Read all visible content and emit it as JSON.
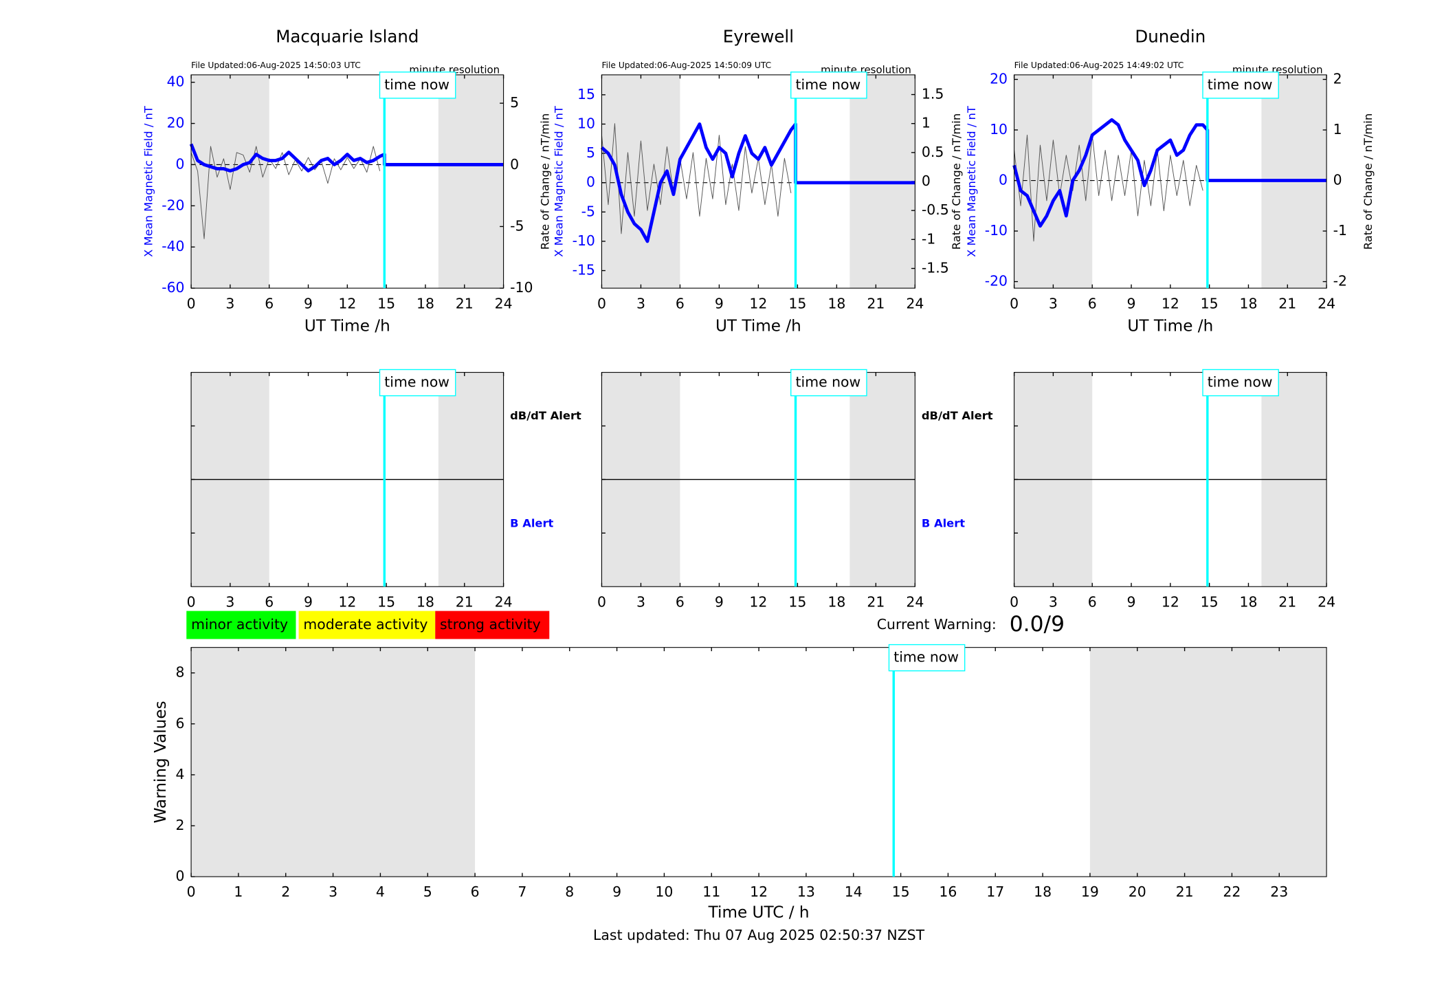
{
  "chart_data": [
    {
      "type": "line",
      "title": "Macquarie Island",
      "note": "File Updated:06-Aug-2025 14:50:03 UTC",
      "resolution": "minute resolution",
      "now_label": "time now",
      "now": 14.85,
      "night": [
        [
          0,
          6
        ],
        [
          19,
          24
        ]
      ],
      "xlabel": "UT Time /h",
      "ylabel": "X Mean Magnetic Field / nT",
      "y2label": "Rate of Change / nT/min",
      "xlim": [
        0,
        24
      ],
      "xticks": [
        0,
        3,
        6,
        9,
        12,
        15,
        18,
        21,
        24
      ],
      "ylim": [
        -60,
        43.6
      ],
      "yticks": [
        -60,
        -40,
        -20,
        0,
        20,
        40
      ],
      "y2lim": [
        -10,
        7.3
      ],
      "y2ticks": [
        -10,
        -5,
        0,
        5
      ],
      "series": [
        {
          "color": "#555555",
          "axis": "y2",
          "x": [
            0,
            0.5,
            1,
            1.5,
            2,
            2.5,
            3,
            3.5,
            4,
            4.5,
            5,
            5.5,
            6,
            6.5,
            7,
            7.5,
            8,
            8.5,
            9,
            9.5,
            10,
            10.5,
            11,
            11.5,
            12,
            12.5,
            13,
            13.5,
            14,
            14.5
          ],
          "values": [
            1,
            -0.5,
            -6,
            1.5,
            -1,
            0.5,
            -2,
            1,
            0.8,
            -0.6,
            1.5,
            -1,
            0.5,
            -0.3,
            1,
            -0.8,
            0.4,
            -0.5,
            0.6,
            -0.4,
            0.3,
            -1.5,
            0.5,
            -0.4,
            0.6,
            -0.3,
            0.5,
            -0.6,
            1.5,
            -0.5
          ]
        },
        {
          "color": "#0000ff",
          "x": [
            0,
            0.5,
            1,
            1.5,
            2,
            2.5,
            3,
            3.5,
            4,
            4.5,
            5,
            5.5,
            6,
            6.5,
            7,
            7.5,
            8,
            8.5,
            9,
            9.5,
            10,
            10.5,
            11,
            11.5,
            12,
            12.5,
            13,
            13.5,
            14,
            14.5,
            14.85,
            14.85,
            24
          ],
          "values": [
            10,
            2,
            0,
            -1,
            -2,
            -2,
            -3,
            -2,
            0,
            1,
            5,
            3,
            2,
            2,
            3,
            6,
            3,
            0,
            -3,
            -1,
            2,
            3,
            0,
            2,
            5,
            2,
            3,
            1,
            2,
            4,
            5,
            0,
            0
          ]
        }
      ]
    },
    {
      "type": "line",
      "title": "Eyrewell",
      "note": "File Updated:06-Aug-2025 14:50:09 UTC",
      "resolution": "minute resolution",
      "now_label": "time now",
      "now": 14.85,
      "night": [
        [
          0,
          6
        ],
        [
          19,
          24
        ]
      ],
      "xlabel": "UT Time /h",
      "ylabel": "X Mean Magnetic Field / nT",
      "y2label": "Rate of Change / nT/min",
      "xlim": [
        0,
        24
      ],
      "xticks": [
        0,
        3,
        6,
        9,
        12,
        15,
        18,
        21,
        24
      ],
      "ylim": [
        -18,
        18.4
      ],
      "yticks": [
        -15,
        -10,
        -5,
        0,
        5,
        10,
        15
      ],
      "y2lim": [
        -1.84,
        1.84
      ],
      "y2ticks": [
        -1.5,
        -1,
        -0.5,
        0,
        0.5,
        1,
        1.5
      ],
      "series": [
        {
          "color": "#555555",
          "axis": "y2",
          "x": [
            0,
            0.5,
            1,
            1.5,
            2,
            2.5,
            3,
            3.5,
            4,
            4.5,
            5,
            5.5,
            6,
            6.5,
            7,
            7.5,
            8,
            8.5,
            9,
            9.5,
            10,
            10.5,
            11,
            11.5,
            12,
            12.5,
            13,
            13.5,
            14,
            14.5
          ],
          "values": [
            0.8,
            -0.4,
            1,
            -0.9,
            0.5,
            -0.6,
            0.7,
            -0.5,
            0.3,
            -0.4,
            0.6,
            -0.2,
            0.4,
            -0.3,
            0.5,
            -0.6,
            0.4,
            -0.3,
            0.8,
            -0.4,
            0.3,
            -0.5,
            0.6,
            -0.2,
            0.4,
            -0.4,
            0.3,
            -0.6,
            0.4,
            -0.2
          ]
        },
        {
          "color": "#0000ff",
          "x": [
            0,
            0.5,
            1,
            1.5,
            2,
            2.5,
            3,
            3.5,
            4,
            4.5,
            5,
            5.5,
            6,
            6.5,
            7,
            7.5,
            8,
            8.5,
            9,
            9.5,
            10,
            10.5,
            11,
            11.5,
            12,
            12.5,
            13,
            13.5,
            14,
            14.5,
            14.85,
            14.85,
            24
          ],
          "values": [
            6,
            5,
            3,
            -2,
            -5,
            -7,
            -8,
            -10,
            -5,
            0,
            2,
            -2,
            4,
            6,
            8,
            10,
            6,
            4,
            6,
            5,
            1,
            5,
            8,
            5,
            4,
            6,
            3,
            5,
            7,
            9,
            10,
            0,
            0
          ]
        }
      ]
    },
    {
      "type": "line",
      "title": "Dunedin",
      "note": "File Updated:06-Aug-2025 14:49:02 UTC",
      "resolution": "minute resolution",
      "now_label": "time now",
      "now": 14.85,
      "night": [
        [
          0,
          6
        ],
        [
          19,
          24
        ]
      ],
      "xlabel": "UT Time /h",
      "ylabel": "X Mean Magnetic Field / nT",
      "y2label": "Rate of Change / nT/min",
      "xlim": [
        0,
        24
      ],
      "xticks": [
        0,
        3,
        6,
        9,
        12,
        15,
        18,
        21,
        24
      ],
      "ylim": [
        -21.3,
        20.9
      ],
      "yticks": [
        -20,
        -10,
        0,
        10,
        20
      ],
      "y2lim": [
        -2.13,
        2.09
      ],
      "y2ticks": [
        -2,
        -1,
        0,
        1,
        2
      ],
      "series": [
        {
          "color": "#555555",
          "axis": "y2",
          "x": [
            0,
            0.5,
            1,
            1.5,
            2,
            2.5,
            3,
            3.5,
            4,
            4.5,
            5,
            5.5,
            6,
            6.5,
            7,
            7.5,
            8,
            8.5,
            9,
            9.5,
            10,
            10.5,
            11,
            11.5,
            12,
            12.5,
            13,
            13.5,
            14,
            14.5
          ],
          "values": [
            0.6,
            -0.5,
            0.9,
            -1.2,
            0.7,
            -0.4,
            0.8,
            -0.3,
            0.5,
            -0.2,
            0.7,
            -0.4,
            0.9,
            -0.3,
            0.6,
            -0.4,
            0.5,
            -0.3,
            0.6,
            -0.7,
            0.4,
            -0.5,
            0.6,
            -0.6,
            0.5,
            -0.3,
            0.4,
            -0.5,
            0.3,
            -0.2
          ]
        },
        {
          "color": "#0000ff",
          "x": [
            0,
            0.5,
            1,
            1.5,
            2,
            2.5,
            3,
            3.5,
            4,
            4.5,
            5,
            5.5,
            6,
            6.5,
            7,
            7.5,
            8,
            8.5,
            9,
            9.5,
            10,
            10.5,
            11,
            11.5,
            12,
            12.5,
            13,
            13.5,
            14,
            14.5,
            14.85,
            14.85,
            24
          ],
          "values": [
            3,
            -2,
            -3,
            -6,
            -9,
            -7,
            -4,
            -2,
            -7,
            0,
            2,
            5,
            9,
            10,
            11,
            12,
            11,
            8,
            6,
            4,
            -1,
            2,
            6,
            7,
            8,
            5,
            6,
            9,
            11,
            11,
            10,
            0,
            0
          ]
        }
      ]
    },
    {
      "type": "alert",
      "now_label": "time now",
      "now": 14.85,
      "night": [
        [
          0,
          6
        ],
        [
          19,
          24
        ]
      ],
      "xlim": [
        0,
        24
      ],
      "xticks": [
        0,
        3,
        6,
        9,
        12,
        15,
        18,
        21,
        24
      ],
      "upper_label": "dB/dT Alert",
      "lower_label": "B Alert"
    },
    {
      "type": "alert",
      "now_label": "time now",
      "now": 14.85,
      "night": [
        [
          0,
          6
        ],
        [
          19,
          24
        ]
      ],
      "xlim": [
        0,
        24
      ],
      "xticks": [
        0,
        3,
        6,
        9,
        12,
        15,
        18,
        21,
        24
      ],
      "upper_label": "dB/dT Alert",
      "lower_label": "B Alert"
    },
    {
      "type": "alert",
      "now_label": "time now",
      "now": 14.85,
      "night": [
        [
          0,
          6
        ],
        [
          19,
          24
        ]
      ],
      "xlim": [
        0,
        24
      ],
      "xticks": [
        0,
        3,
        6,
        9,
        12,
        15,
        18,
        21,
        24
      ]
    },
    {
      "type": "bar",
      "now_label": "time now",
      "now": 14.85,
      "night": [
        [
          0,
          6
        ],
        [
          19,
          24
        ]
      ],
      "xlabel": "Time UTC / h",
      "ylabel": "Warning Values",
      "xlim": [
        0,
        24
      ],
      "xticks": [
        0,
        1,
        2,
        3,
        4,
        5,
        6,
        7,
        8,
        9,
        10,
        11,
        12,
        13,
        14,
        15,
        16,
        17,
        18,
        19,
        20,
        21,
        22,
        23
      ],
      "ylim": [
        0,
        9
      ],
      "yticks": [
        0,
        2,
        4,
        6,
        8
      ],
      "legend": [
        {
          "label": "minor activity",
          "color": "#00ff00"
        },
        {
          "label": "moderate activity",
          "color": "#ffff00"
        },
        {
          "label": "strong activity",
          "color": "#ff0000"
        }
      ],
      "current_warning_label": "Current Warning:",
      "current_warning": "0.0/9",
      "footer": "Last updated: Thu 07 Aug 2025 02:50:37 NZST"
    }
  ]
}
